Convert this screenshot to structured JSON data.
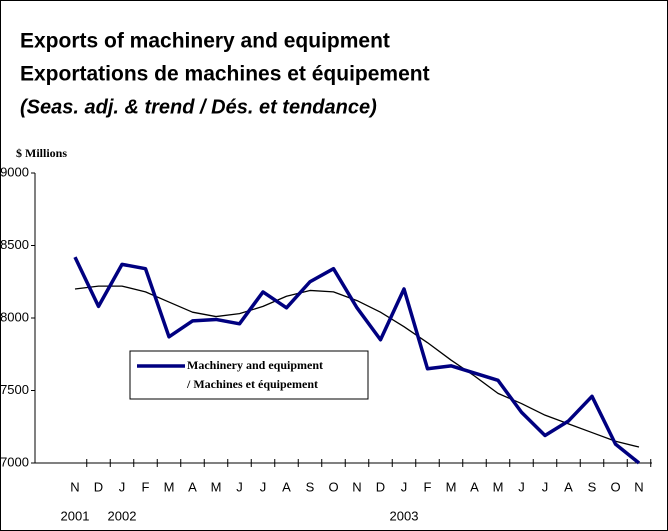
{
  "chart_data": {
    "type": "line",
    "title": "Exports of machinery and equipment",
    "title2": "Exportations de machines et équipement",
    "subtitle": "(Seas. adj. & trend / Dés. et tendance)",
    "y_label": "$ Millions",
    "categories": [
      "N",
      "D",
      "J",
      "F",
      "M",
      "A",
      "M",
      "J",
      "J",
      "A",
      "S",
      "O",
      "N",
      "D",
      "J",
      "F",
      "M",
      "A",
      "M",
      "J",
      "J",
      "A",
      "S",
      "O",
      "N"
    ],
    "category_years": [
      "2001",
      null,
      "2002",
      null,
      null,
      null,
      null,
      null,
      null,
      null,
      null,
      null,
      null,
      null,
      "2003",
      null,
      null,
      null,
      null,
      null,
      null,
      null,
      null,
      null,
      null
    ],
    "series": [
      {
        "name": "Machinery and equipment",
        "name2": "/ Machines et équipement",
        "color": "#000080",
        "values": [
          8420,
          8080,
          8370,
          8340,
          7870,
          7980,
          7990,
          7960,
          8180,
          8070,
          8250,
          8340,
          8070,
          7850,
          8200,
          7650,
          7670,
          7620,
          7570,
          7350,
          7190,
          7290,
          7460,
          7130,
          7000
        ]
      },
      {
        "color": "#000000",
        "values": [
          8200,
          8220,
          8220,
          8180,
          8110,
          8040,
          8010,
          8030,
          8080,
          8150,
          8190,
          8180,
          8120,
          8040,
          7940,
          7830,
          7710,
          7600,
          7480,
          7410,
          7330,
          7270,
          7210,
          7150,
          7110
        ]
      }
    ],
    "ylim": [
      7000,
      9000
    ],
    "yticks": [
      7000,
      7500,
      8000,
      8500,
      9000
    ],
    "grid": false
  }
}
